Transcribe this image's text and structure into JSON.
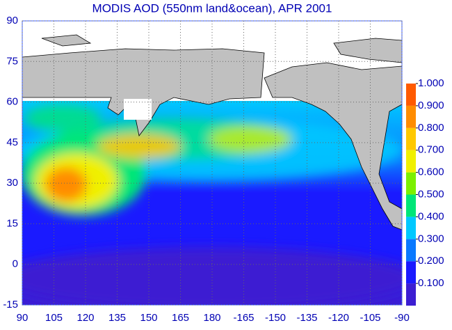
{
  "chart_data": {
    "type": "map",
    "title": "MODIS AOD (550nm land&ocean), APR 2001",
    "xticks": [
      90,
      105,
      120,
      135,
      150,
      165,
      180,
      -165,
      -150,
      -135,
      -120,
      -105,
      -90
    ],
    "ylim": [
      -15,
      90
    ],
    "yticks": [
      90,
      75,
      60,
      45,
      30,
      15,
      0,
      -15
    ],
    "grid": true,
    "colorbar": {
      "lim": [
        0,
        1
      ],
      "ticks": [
        {
          "value": 0.1,
          "label": "0.100"
        },
        {
          "value": 0.2,
          "label": "0.200"
        },
        {
          "value": 0.3,
          "label": "0.300"
        },
        {
          "value": 0.4,
          "label": "0.400"
        },
        {
          "value": 0.5,
          "label": "0.500"
        },
        {
          "value": 0.6,
          "label": "0.600"
        },
        {
          "value": 0.7,
          "label": "0.700"
        },
        {
          "value": 0.8,
          "label": "0.800"
        },
        {
          "value": 0.9,
          "label": "0.900"
        },
        {
          "value": 1,
          "label": "1.000"
        }
      ],
      "colors": [
        "#3c1ed2",
        "#1a1aff",
        "#0a78ff",
        "#00c8ff",
        "#00e678",
        "#7cf000",
        "#f0f000",
        "#ffc800",
        "#ff8c00",
        "#ff5a00"
      ]
    }
  }
}
